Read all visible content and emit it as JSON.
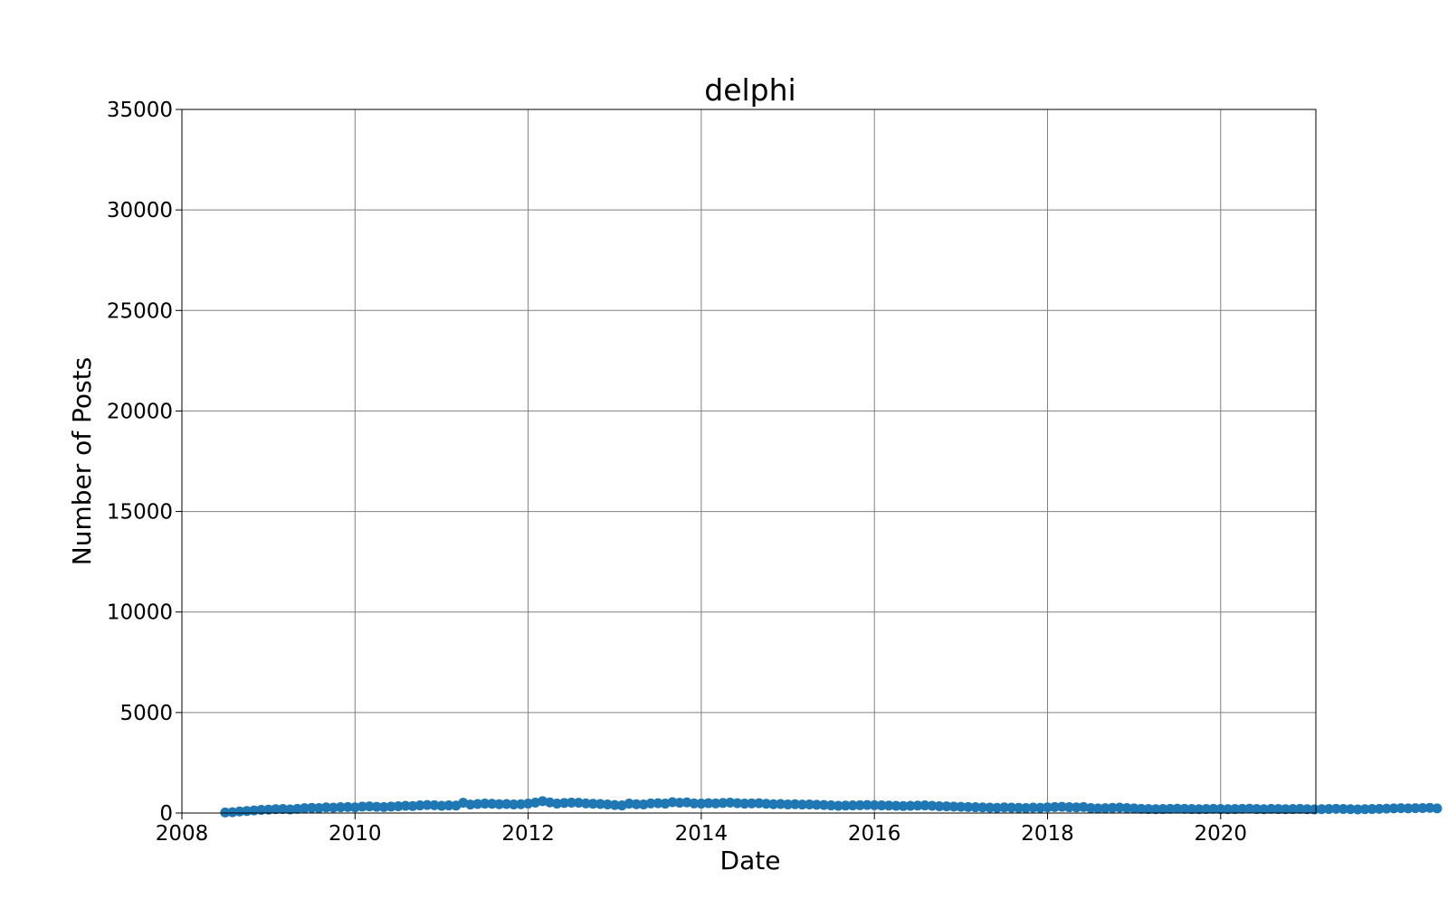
{
  "chart_data": {
    "type": "scatter",
    "title": "delphi",
    "xlabel": "Date",
    "ylabel": "Number of Posts",
    "xlim": [
      2008.0,
      2021.1
    ],
    "ylim": [
      0,
      35000
    ],
    "grid": true,
    "legend": "none",
    "xticks": [
      2008,
      2010,
      2012,
      2014,
      2016,
      2018,
      2020
    ],
    "xtick_labels": [
      "2008",
      "2010",
      "2012",
      "2014",
      "2016",
      "2018",
      "2020"
    ],
    "yticks": [
      0,
      5000,
      10000,
      15000,
      20000,
      25000,
      30000,
      35000
    ],
    "ytick_labels": [
      "0",
      "5000",
      "10000",
      "15000",
      "20000",
      "25000",
      "30000",
      "35000"
    ],
    "point_color": "#1f77b4",
    "series": [
      {
        "name": "delphi",
        "x_start": 2008.5,
        "x_step": 0.083333,
        "values": [
          30,
          40,
          80,
          100,
          130,
          160,
          170,
          190,
          200,
          180,
          210,
          240,
          260,
          250,
          280,
          270,
          290,
          300,
          280,
          320,
          330,
          310,
          300,
          320,
          340,
          360,
          350,
          380,
          400,
          390,
          360,
          380,
          370,
          510,
          420,
          450,
          470,
          460,
          440,
          450,
          430,
          440,
          470,
          520,
          590,
          530,
          470,
          500,
          520,
          510,
          480,
          460,
          450,
          430,
          400,
          380,
          470,
          440,
          430,
          480,
          490,
          470,
          540,
          510,
          530,
          480,
          470,
          490,
          480,
          500,
          520,
          490,
          470,
          480,
          490,
          460,
          440,
          450,
          430,
          440,
          420,
          430,
          410,
          400,
          380,
          360,
          370,
          380,
          390,
          400,
          390,
          380,
          370,
          360,
          350,
          360,
          370,
          380,
          360,
          340,
          330,
          320,
          310,
          300,
          290,
          280,
          270,
          260,
          280,
          270,
          260,
          250,
          270,
          260,
          280,
          300,
          310,
          290,
          280,
          300,
          250,
          230,
          240,
          260,
          270,
          250,
          230,
          210,
          200,
          190,
          200,
          210,
          220,
          210,
          200,
          190,
          200,
          210,
          200,
          190,
          200,
          210,
          220,
          200,
          190,
          210,
          200,
          190,
          200,
          210,
          190,
          180,
          190,
          200,
          210,
          200,
          190,
          180,
          190,
          200,
          210,
          220,
          230,
          240,
          230,
          240,
          250,
          260,
          230
        ]
      }
    ]
  }
}
